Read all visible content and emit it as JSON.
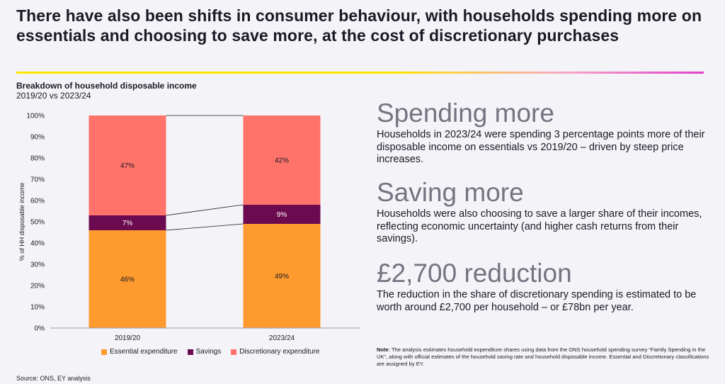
{
  "headline": "There have also been shifts in consumer behaviour, with households spending more on essentials and choosing to save more, at the cost of discretionary purchases",
  "colors": {
    "essential": "#ff9a2e",
    "savings": "#6b0a4e",
    "discretionary": "#ff736a",
    "muted_heading": "#747480"
  },
  "chart_data": {
    "type": "bar",
    "stacked": true,
    "title": "Breakdown of household disposable income",
    "subtitle": "2019/20 vs 2023/24",
    "xlabel": "",
    "ylabel": "% of HH disposable income",
    "ylim": [
      0,
      100
    ],
    "yticks": [
      "0%",
      "10%",
      "20%",
      "30%",
      "40%",
      "50%",
      "60%",
      "70%",
      "80%",
      "90%",
      "100%"
    ],
    "categories": [
      "2019/20",
      "2023/24"
    ],
    "series": [
      {
        "name": "Essential expenditure",
        "values": [
          46,
          49
        ],
        "labels": [
          "46%",
          "49%"
        ]
      },
      {
        "name": "Savings",
        "values": [
          7,
          9
        ],
        "labels": [
          "7%",
          "9%"
        ]
      },
      {
        "name": "Discretionary expenditure",
        "values": [
          47,
          42
        ],
        "labels": [
          "47%",
          "42%"
        ]
      }
    ],
    "legend_position": "bottom"
  },
  "panels": [
    {
      "heading": "Spending more",
      "body": "Households in 2023/24 were spending 3 percentage points more of their disposable income on essentials vs 2019/20 – driven by steep price increases."
    },
    {
      "heading": "Saving more",
      "body": "Households were also choosing to save a larger share of their incomes, reflecting economic uncertainty (and higher cash returns from their savings)."
    },
    {
      "heading": "£2,700 reduction",
      "body": "The reduction in the share of discretionary spending is estimated to be worth around £2,700 per household – or £78bn per year."
    }
  ],
  "note": {
    "label": "Note",
    "text": ": The analysis estimates household expenditure shares using data from the ONS household spending survey “Family Spending in the UK”, along with official estimates of the household saving rate and household disposable income. Essential and Discretionary classifications are assigned by EY."
  },
  "source": "Source: ONS, EY analysis"
}
